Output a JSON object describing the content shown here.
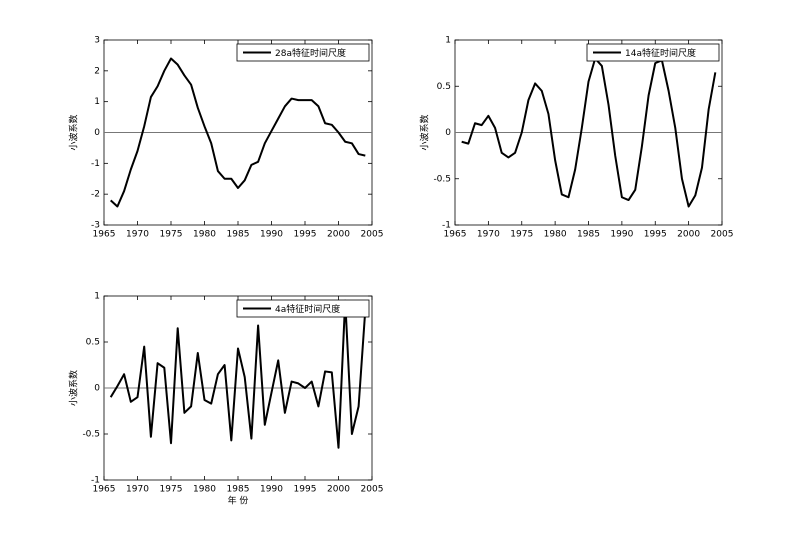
{
  "chart_data": [
    {
      "type": "line",
      "ylabel": "小波系数",
      "x": [
        1966,
        1967,
        1968,
        1969,
        1970,
        1971,
        1972,
        1973,
        1974,
        1975,
        1976,
        1977,
        1978,
        1979,
        1980,
        1981,
        1982,
        1983,
        1984,
        1985,
        1986,
        1987,
        1988,
        1989,
        1990,
        1991,
        1992,
        1993,
        1994,
        1995,
        1996,
        1997,
        1998,
        1999,
        2000,
        2001,
        2002,
        2003,
        2004
      ],
      "series": [
        {
          "name": "28a特征时间尺度",
          "color": "#000000",
          "values": [
            -2.2,
            -2.4,
            -1.9,
            -1.2,
            -0.6,
            0.2,
            1.15,
            1.5,
            2.0,
            2.4,
            2.2,
            1.85,
            1.55,
            0.8,
            0.2,
            -0.35,
            -1.25,
            -1.5,
            -1.5,
            -1.8,
            -1.55,
            -1.05,
            -0.95,
            -0.35,
            0.05,
            0.45,
            0.85,
            1.1,
            1.05,
            1.05,
            1.05,
            0.85,
            0.3,
            0.25,
            0.0,
            -0.3,
            -0.35,
            -0.7,
            -0.75
          ]
        }
      ],
      "xlim": [
        1965,
        2005
      ],
      "xticks": [
        1965,
        1970,
        1975,
        1980,
        1985,
        1990,
        1995,
        2000,
        2005
      ],
      "ylim": [
        -3,
        3
      ],
      "yticks": [
        -3,
        -2,
        -1,
        0,
        1,
        2,
        3
      ],
      "hline": 0,
      "legend": "upper right"
    },
    {
      "type": "line",
      "ylabel": "小波系数",
      "x": [
        1966,
        1967,
        1968,
        1969,
        1970,
        1971,
        1972,
        1973,
        1974,
        1975,
        1976,
        1977,
        1978,
        1979,
        1980,
        1981,
        1982,
        1983,
        1984,
        1985,
        1986,
        1987,
        1988,
        1989,
        1990,
        1991,
        1992,
        1993,
        1994,
        1995,
        1996,
        1997,
        1998,
        1999,
        2000,
        2001,
        2002,
        2003,
        2004
      ],
      "series": [
        {
          "name": "14a特征时间尺度",
          "color": "#000000",
          "values": [
            -0.1,
            -0.12,
            0.1,
            0.08,
            0.18,
            0.05,
            -0.22,
            -0.27,
            -0.22,
            0.0,
            0.35,
            0.53,
            0.45,
            0.2,
            -0.3,
            -0.67,
            -0.7,
            -0.4,
            0.05,
            0.55,
            0.8,
            0.72,
            0.3,
            -0.25,
            -0.7,
            -0.73,
            -0.62,
            -0.15,
            0.4,
            0.75,
            0.78,
            0.45,
            0.05,
            -0.5,
            -0.8,
            -0.68,
            -0.38,
            0.25,
            0.65
          ]
        }
      ],
      "xlim": [
        1965,
        2005
      ],
      "xticks": [
        1965,
        1970,
        1975,
        1980,
        1985,
        1990,
        1995,
        2000,
        2005
      ],
      "ylim": [
        -1,
        1
      ],
      "yticks": [
        -1,
        -0.5,
        0,
        0.5,
        1
      ],
      "hline": 0,
      "legend": "upper right"
    },
    {
      "type": "line",
      "ylabel": "小波系数",
      "xlabel": "年 份",
      "x": [
        1966,
        1967,
        1968,
        1969,
        1970,
        1971,
        1972,
        1973,
        1974,
        1975,
        1976,
        1977,
        1978,
        1979,
        1980,
        1981,
        1982,
        1983,
        1984,
        1985,
        1986,
        1987,
        1988,
        1989,
        1990,
        1991,
        1992,
        1993,
        1994,
        1995,
        1996,
        1997,
        1998,
        1999,
        2000,
        2001,
        2002,
        2003,
        2004
      ],
      "series": [
        {
          "name": "4a特征时间尺度",
          "color": "#000000",
          "values": [
            -0.1,
            0.02,
            0.15,
            -0.15,
            -0.1,
            0.45,
            -0.53,
            0.27,
            0.22,
            -0.6,
            0.65,
            -0.27,
            -0.2,
            0.38,
            -0.13,
            -0.17,
            0.15,
            0.25,
            -0.57,
            0.43,
            0.12,
            -0.55,
            0.68,
            -0.4,
            -0.05,
            0.3,
            -0.27,
            0.07,
            0.05,
            0.0,
            0.07,
            -0.2,
            0.18,
            0.17,
            -0.65,
            0.95,
            -0.5,
            -0.2,
            0.85
          ]
        }
      ],
      "xlim": [
        1965,
        2005
      ],
      "xticks": [
        1965,
        1970,
        1975,
        1980,
        1985,
        1990,
        1995,
        2000,
        2005
      ],
      "ylim": [
        -1,
        1
      ],
      "yticks": [
        -1,
        -0.5,
        0,
        0.5,
        1
      ],
      "hline": 0,
      "legend": "upper right"
    }
  ]
}
